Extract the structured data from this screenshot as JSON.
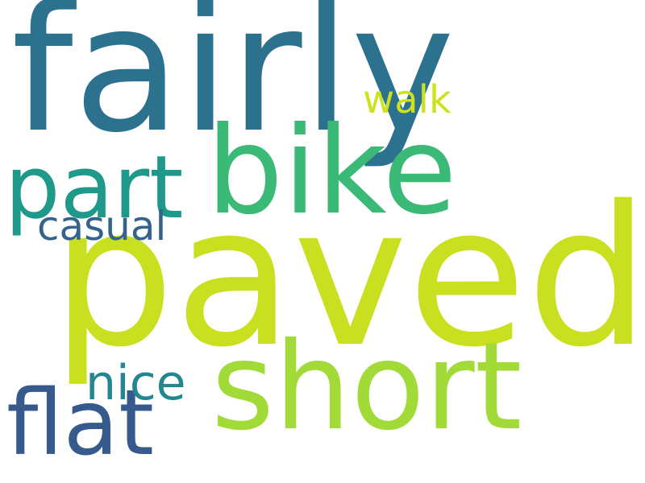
{
  "words": [
    {
      "id": "fairly",
      "text": "fairly",
      "color": "#2c728e"
    },
    {
      "id": "paved",
      "text": "paved",
      "color": "#c8e020"
    },
    {
      "id": "bike",
      "text": "bike",
      "color": "#3aba76"
    },
    {
      "id": "short",
      "text": "short",
      "color": "#a2da37"
    },
    {
      "id": "part",
      "text": "part",
      "color": "#1f998a"
    },
    {
      "id": "flat",
      "text": "flat",
      "color": "#375a8c"
    },
    {
      "id": "casual",
      "text": "casual",
      "color": "#33638d"
    },
    {
      "id": "nice",
      "text": "nice",
      "color": "#24868e"
    },
    {
      "id": "walk",
      "text": "walk",
      "color": "#cde11d"
    }
  ]
}
